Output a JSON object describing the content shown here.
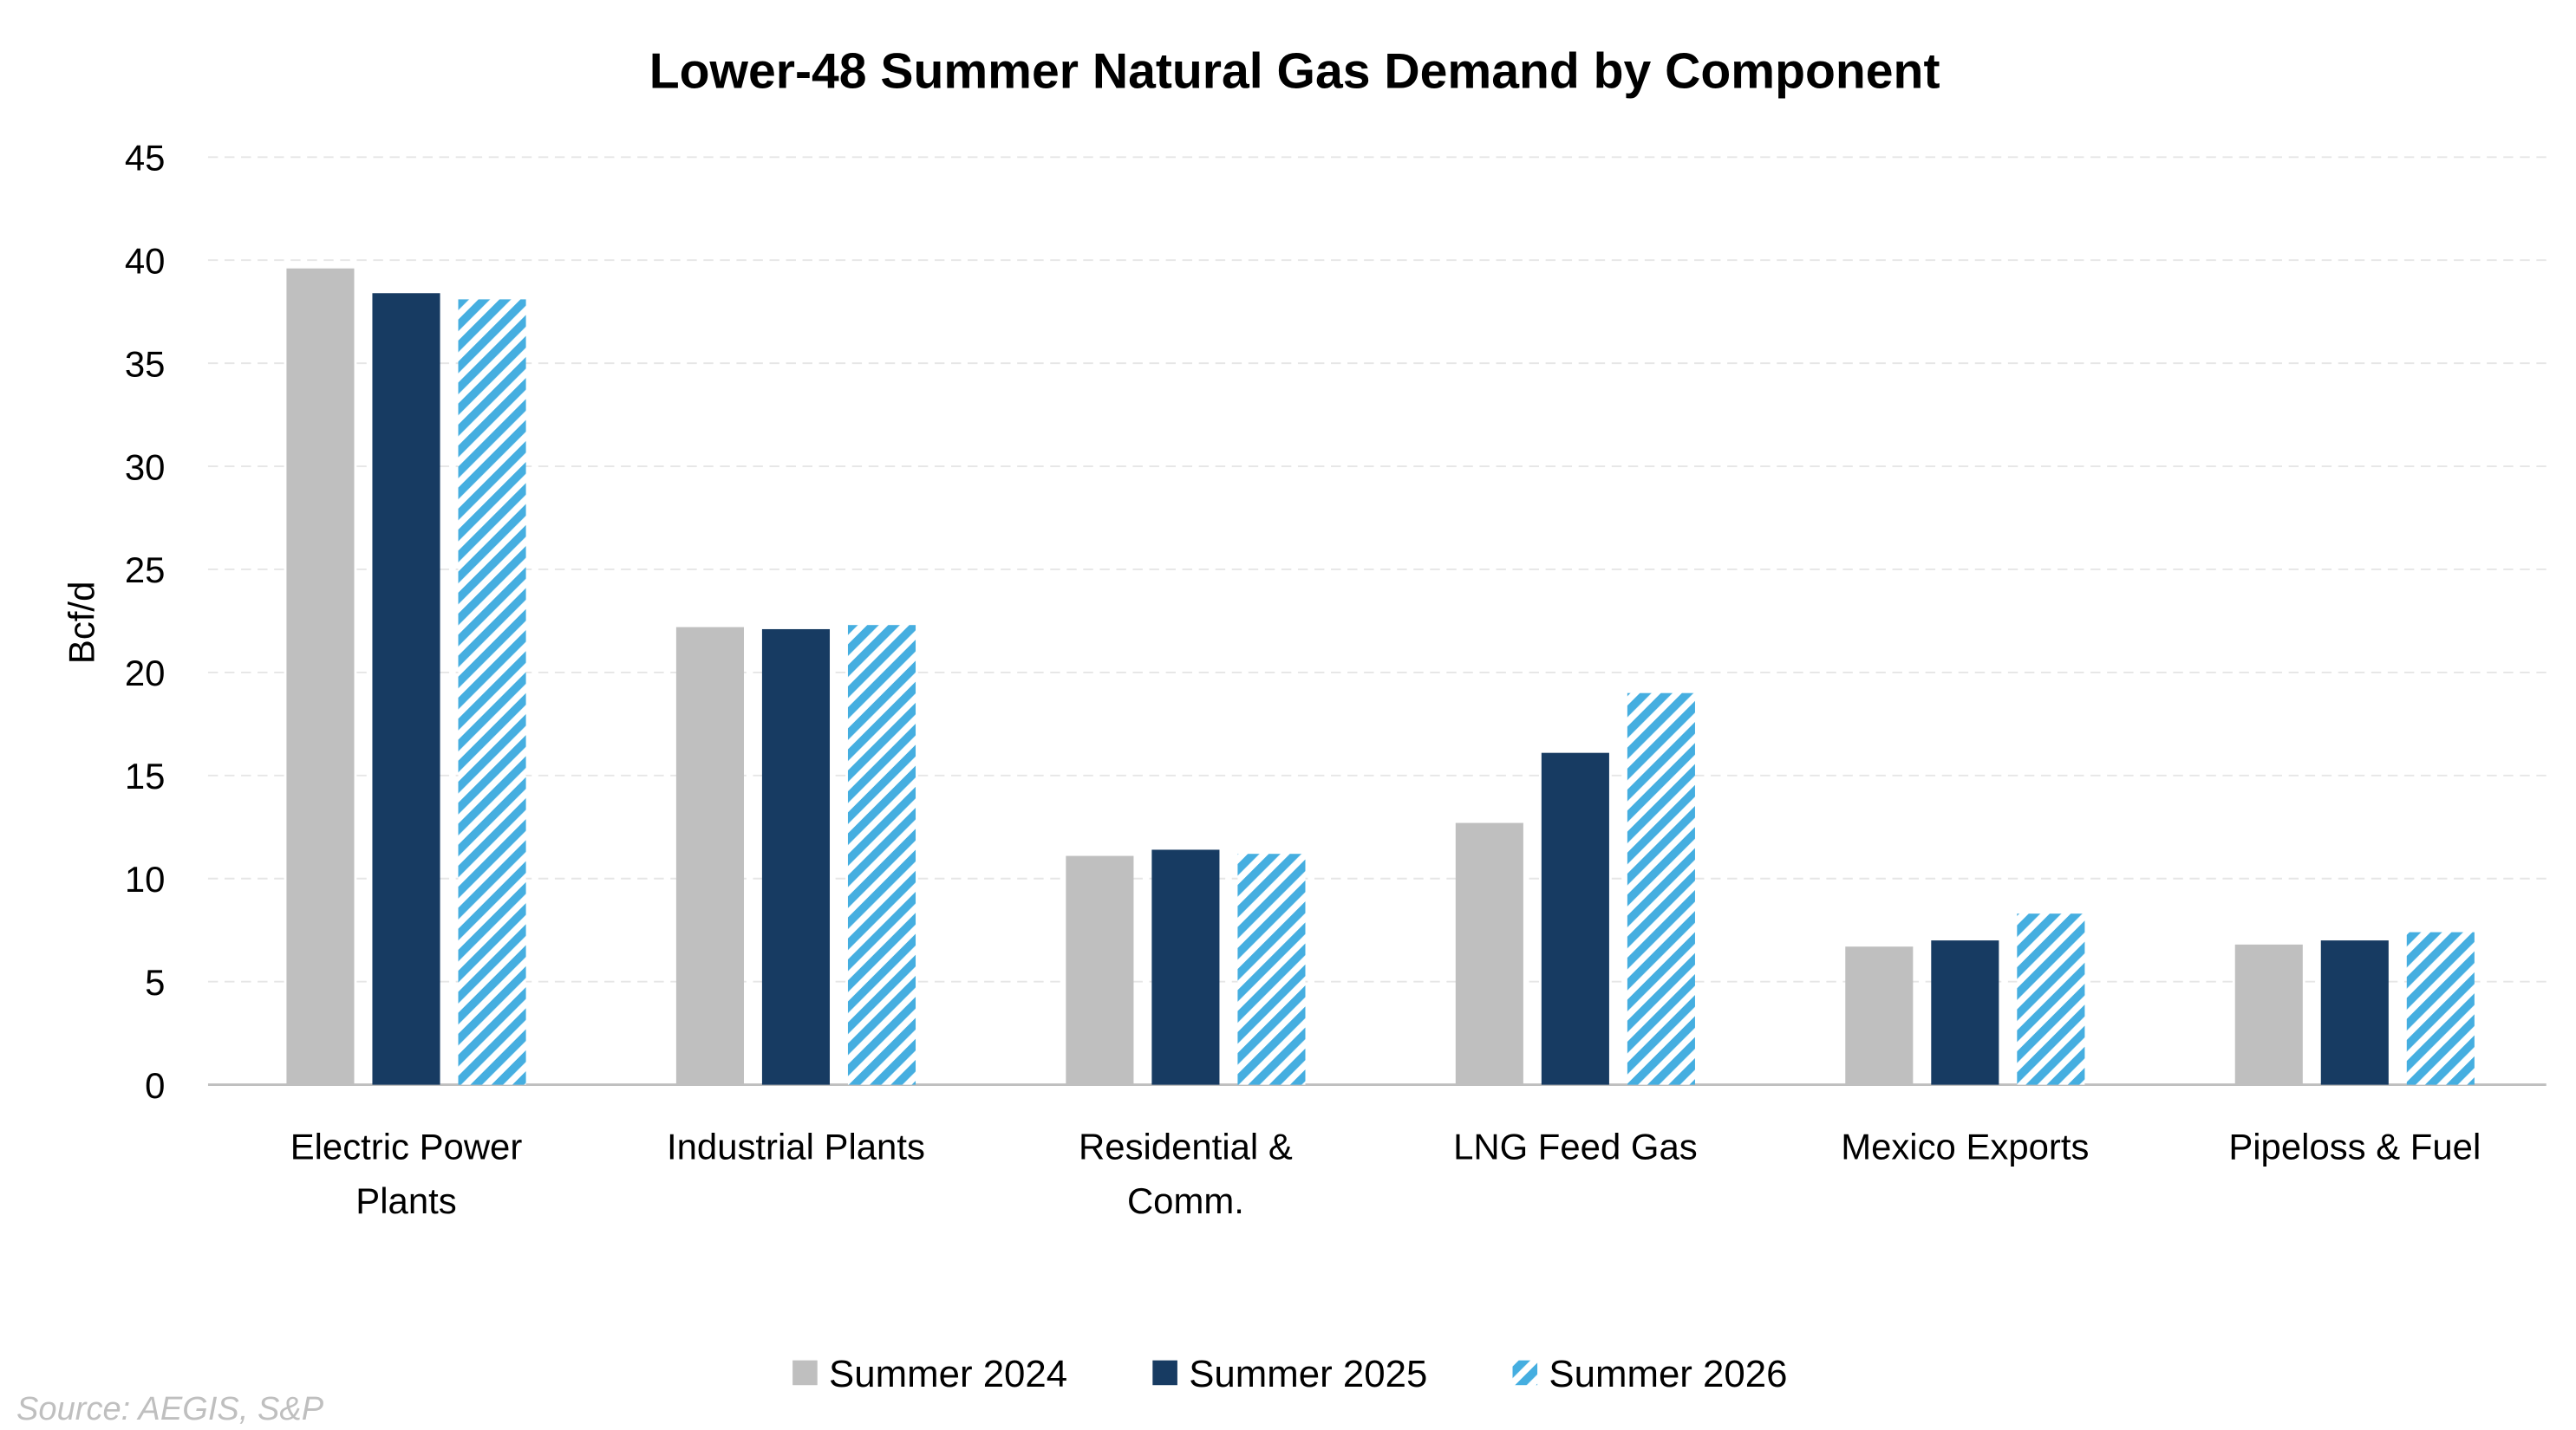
{
  "chart_data": {
    "type": "bar",
    "title": "Lower-48 Summer Natural Gas Demand by Component",
    "xlabel": "",
    "ylabel": "Bcf/d",
    "ylim": [
      0,
      45
    ],
    "yticks": [
      0,
      5,
      10,
      15,
      20,
      25,
      30,
      35,
      40,
      45
    ],
    "grid": true,
    "legend_position": "bottom",
    "categories": [
      [
        "Electric Power",
        "Plants"
      ],
      [
        "Industrial Plants"
      ],
      [
        "Residential &",
        "Comm."
      ],
      [
        "LNG Feed Gas"
      ],
      [
        "Mexico Exports"
      ],
      [
        "Pipeloss & Fuel"
      ]
    ],
    "series": [
      {
        "name": "Summer 2024",
        "color": "#bfbfbf",
        "pattern": "solid",
        "values": [
          39.6,
          22.2,
          11.1,
          12.7,
          6.7,
          6.8
        ]
      },
      {
        "name": "Summer 2025",
        "color": "#173b62",
        "pattern": "solid",
        "values": [
          38.4,
          22.1,
          11.4,
          16.1,
          7.0,
          7.0
        ]
      },
      {
        "name": "Summer 2026",
        "color": "#45aee0",
        "pattern": "diagonal-stripes",
        "values": [
          38.1,
          22.3,
          11.2,
          19.0,
          8.3,
          7.4
        ]
      }
    ],
    "source": "Source: AEGIS, S&P"
  }
}
